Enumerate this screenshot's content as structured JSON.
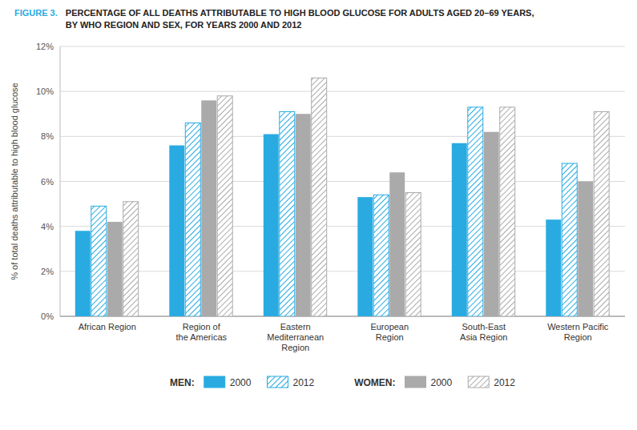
{
  "chart_data": {
    "type": "bar",
    "title": "PERCENTAGE OF ALL DEATHS ATTRIBUTABLE TO HIGH BLOOD GLUCOSE FOR ADULTS AGED 20–69 YEARS,",
    "subtitle": "BY WHO REGION AND SEX, FOR YEARS 2000 AND 2012",
    "annotations": [
      "FIGURE 3.",
      "MEN:",
      "WOMEN:"
    ],
    "y_label": "% of total deaths attributable to high blood glucose",
    "categories": [
      "African Region",
      "Region of\nthe Americas",
      "Eastern\nMediterranean\nRegion",
      "European\nRegion",
      "South-East\nAsia Region",
      "Western Pacific\nRegion"
    ],
    "series": [
      {
        "name": "2000",
        "color": "#29ABE2",
        "values": [
          3.8,
          7.6,
          8.1,
          5.3,
          7.7,
          4.3
        ]
      },
      {
        "name": "2012",
        "color": "#29ABE2",
        "values": [
          4.9,
          8.6,
          9.1,
          5.4,
          9.3,
          6.8
        ]
      },
      {
        "name": "2000",
        "color": "#AAAAAA",
        "values": [
          4.2,
          9.6,
          9.0,
          6.4,
          8.2,
          6.0
        ]
      },
      {
        "name": "2012",
        "color": "#AAAAAA",
        "values": [
          5.1,
          9.8,
          10.6,
          5.5,
          9.3,
          9.1
        ]
      }
    ],
    "ylim": [
      0,
      12
    ],
    "yticks": [
      {
        "value": 0,
        "label": "0%"
      },
      {
        "value": 2,
        "label": "2%"
      },
      {
        "value": 4,
        "label": "4%"
      },
      {
        "value": 6,
        "label": "6%"
      },
      {
        "value": 8,
        "label": "8%"
      },
      {
        "value": 10,
        "label": "10%"
      },
      {
        "value": 12,
        "label": "12%"
      }
    ],
    "grid": true,
    "legend": "bottom"
  }
}
